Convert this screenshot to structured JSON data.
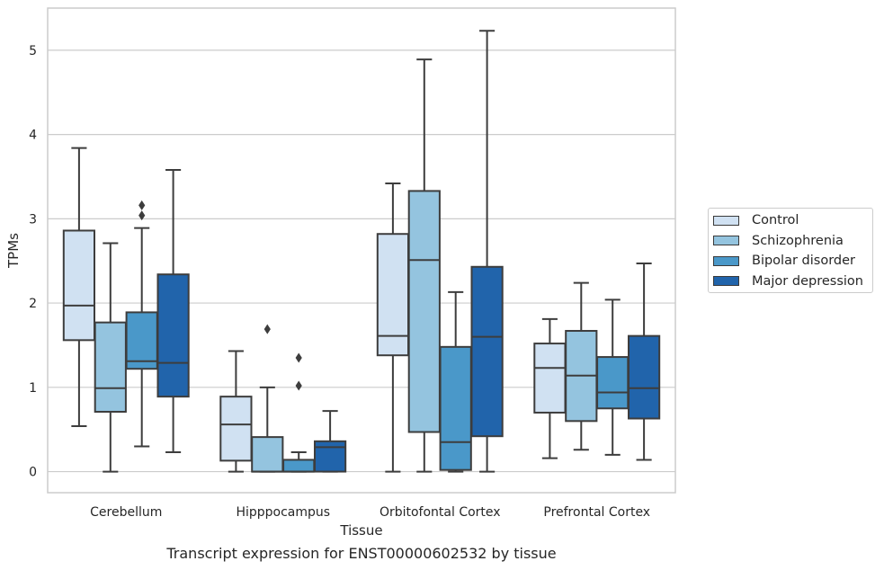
{
  "caption": "Transcript expression for ENST00000602532 by tissue",
  "chart_data": {
    "type": "box",
    "xlabel": "Tissue",
    "ylabel": "TPMs",
    "ylim": [
      -0.25,
      5.5
    ],
    "yticks": [
      0,
      1,
      2,
      3,
      4,
      5
    ],
    "grid": true,
    "legend_position": "right",
    "categories": [
      "Cerebellum",
      "Hipppocampus",
      "Orbitofontal Cortex",
      "Prefrontal Cortex"
    ],
    "series": [
      {
        "name": "Control",
        "color": "#d0e1f2",
        "boxes": [
          {
            "whislo": 0.54,
            "q1": 1.56,
            "med": 1.97,
            "q3": 2.86,
            "whishi": 3.84,
            "fliers": []
          },
          {
            "whislo": 0.0,
            "q1": 0.13,
            "med": 0.56,
            "q3": 0.89,
            "whishi": 1.43,
            "fliers": []
          },
          {
            "whislo": 0.0,
            "q1": 1.38,
            "med": 1.61,
            "q3": 2.82,
            "whishi": 3.42,
            "fliers": []
          },
          {
            "whislo": 0.16,
            "q1": 0.7,
            "med": 1.23,
            "q3": 1.52,
            "whishi": 1.81,
            "fliers": []
          }
        ]
      },
      {
        "name": "Schizophrenia",
        "color": "#94c4df",
        "boxes": [
          {
            "whislo": 0.0,
            "q1": 0.71,
            "med": 0.99,
            "q3": 1.77,
            "whishi": 2.71,
            "fliers": []
          },
          {
            "whislo": 0.0,
            "q1": 0.0,
            "med": 0.0,
            "q3": 0.41,
            "whishi": 1.0,
            "fliers": [
              1.69
            ]
          },
          {
            "whislo": 0.0,
            "q1": 0.47,
            "med": 2.51,
            "q3": 3.33,
            "whishi": 4.89,
            "fliers": []
          },
          {
            "whislo": 0.26,
            "q1": 0.6,
            "med": 1.14,
            "q3": 1.67,
            "whishi": 2.24,
            "fliers": []
          }
        ]
      },
      {
        "name": "Bipolar disorder",
        "color": "#4a98c9",
        "boxes": [
          {
            "whislo": 0.3,
            "q1": 1.22,
            "med": 1.31,
            "q3": 1.89,
            "whishi": 2.89,
            "fliers": [
              3.04,
              3.16
            ]
          },
          {
            "whislo": 0.0,
            "q1": 0.0,
            "med": 0.0,
            "q3": 0.14,
            "whishi": 0.23,
            "fliers": [
              1.02,
              1.35
            ]
          },
          {
            "whislo": 0.0,
            "q1": 0.02,
            "med": 0.35,
            "q3": 1.48,
            "whishi": 2.13,
            "fliers": []
          },
          {
            "whislo": 0.2,
            "q1": 0.75,
            "med": 0.94,
            "q3": 1.36,
            "whishi": 2.04,
            "fliers": []
          }
        ]
      },
      {
        "name": "Major depression",
        "color": "#2164ab",
        "boxes": [
          {
            "whislo": 0.23,
            "q1": 0.89,
            "med": 1.29,
            "q3": 2.34,
            "whishi": 3.58,
            "fliers": []
          },
          {
            "whislo": 0.0,
            "q1": 0.0,
            "med": 0.29,
            "q3": 0.36,
            "whishi": 0.72,
            "fliers": []
          },
          {
            "whislo": 0.0,
            "q1": 0.42,
            "med": 1.6,
            "q3": 2.43,
            "whishi": 5.23,
            "fliers": []
          },
          {
            "whislo": 0.14,
            "q1": 0.63,
            "med": 0.99,
            "q3": 1.61,
            "whishi": 2.47,
            "fliers": []
          }
        ]
      }
    ]
  }
}
